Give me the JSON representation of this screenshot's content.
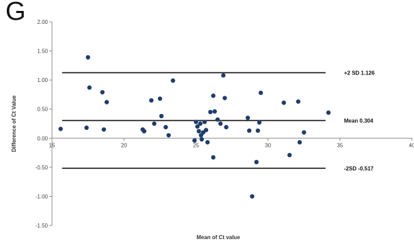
{
  "panel_label": "G",
  "chart_data": {
    "type": "scatter",
    "xlabel": "Mean of Ct value",
    "ylabel": "Difference of Ct Value",
    "xlim": [
      15,
      40
    ],
    "ylim": [
      -1.5,
      2.0
    ],
    "x_ticks": [
      {
        "value": 15,
        "label": "15"
      },
      {
        "value": 20,
        "label": "20"
      },
      {
        "value": 25,
        "label": "25"
      },
      {
        "value": 30,
        "label": "30"
      },
      {
        "value": 35,
        "label": "35"
      },
      {
        "value": 40,
        "label": "40"
      }
    ],
    "y_ticks": [
      {
        "value": 2.0,
        "label": "2.00"
      },
      {
        "value": 1.5,
        "label": "1.50"
      },
      {
        "value": 1.0,
        "label": "1.00"
      },
      {
        "value": 0.5,
        "label": "0.50"
      },
      {
        "value": 0.0,
        "label": "0.00"
      },
      {
        "value": -0.5,
        "label": "-0.50"
      },
      {
        "value": -1.0,
        "label": "-1.00"
      },
      {
        "value": -1.5,
        "label": "-1.50"
      }
    ],
    "reference_lines": [
      {
        "y": 1.126,
        "label": "+2 SD 1.126"
      },
      {
        "y": 0.304,
        "label": "Mean 0.304"
      },
      {
        "y": -0.517,
        "label": "-2SD -0.517"
      }
    ],
    "ref_x_range": [
      15.7,
      34.0
    ],
    "point_color": "#1f3d6b",
    "line_color": "#111111",
    "axis_color": "#8a8a8a",
    "points": [
      {
        "x": 15.6,
        "y": 0.16
      },
      {
        "x": 17.4,
        "y": 0.18
      },
      {
        "x": 17.5,
        "y": 1.39
      },
      {
        "x": 17.6,
        "y": 0.87
      },
      {
        "x": 18.5,
        "y": 0.79
      },
      {
        "x": 18.6,
        "y": 0.15
      },
      {
        "x": 18.8,
        "y": 0.62
      },
      {
        "x": 21.3,
        "y": 0.15
      },
      {
        "x": 21.4,
        "y": 0.12
      },
      {
        "x": 21.9,
        "y": 0.65
      },
      {
        "x": 22.1,
        "y": 0.25
      },
      {
        "x": 22.5,
        "y": 0.68
      },
      {
        "x": 22.6,
        "y": 0.38
      },
      {
        "x": 22.9,
        "y": 0.19
      },
      {
        "x": 23.1,
        "y": 0.05
      },
      {
        "x": 23.4,
        "y": 0.99
      },
      {
        "x": 24.9,
        "y": -0.04
      },
      {
        "x": 25.0,
        "y": 0.28
      },
      {
        "x": 25.1,
        "y": 0.2
      },
      {
        "x": 25.2,
        "y": 0.12
      },
      {
        "x": 25.3,
        "y": 0.25
      },
      {
        "x": 25.35,
        "y": 0.05
      },
      {
        "x": 25.4,
        "y": -0.02
      },
      {
        "x": 25.5,
        "y": 0.1
      },
      {
        "x": 25.6,
        "y": 0.28
      },
      {
        "x": 25.7,
        "y": 0.14
      },
      {
        "x": 25.8,
        "y": -0.07
      },
      {
        "x": 26.0,
        "y": 0.45
      },
      {
        "x": 26.2,
        "y": 0.73
      },
      {
        "x": 26.3,
        "y": 0.46
      },
      {
        "x": 26.2,
        "y": -0.33
      },
      {
        "x": 26.5,
        "y": 0.32
      },
      {
        "x": 26.7,
        "y": 0.25
      },
      {
        "x": 26.9,
        "y": 1.08
      },
      {
        "x": 27.0,
        "y": 0.69
      },
      {
        "x": 27.1,
        "y": 0.19
      },
      {
        "x": 28.6,
        "y": 0.35
      },
      {
        "x": 28.7,
        "y": 0.13
      },
      {
        "x": 28.9,
        "y": -1.0
      },
      {
        "x": 29.2,
        "y": -0.41
      },
      {
        "x": 29.3,
        "y": 0.13
      },
      {
        "x": 29.4,
        "y": 0.27
      },
      {
        "x": 29.5,
        "y": 0.78
      },
      {
        "x": 31.1,
        "y": 0.61
      },
      {
        "x": 31.5,
        "y": -0.29
      },
      {
        "x": 32.1,
        "y": 0.63
      },
      {
        "x": 32.2,
        "y": -0.07
      },
      {
        "x": 32.5,
        "y": 0.1
      },
      {
        "x": 34.2,
        "y": 0.44
      }
    ]
  }
}
